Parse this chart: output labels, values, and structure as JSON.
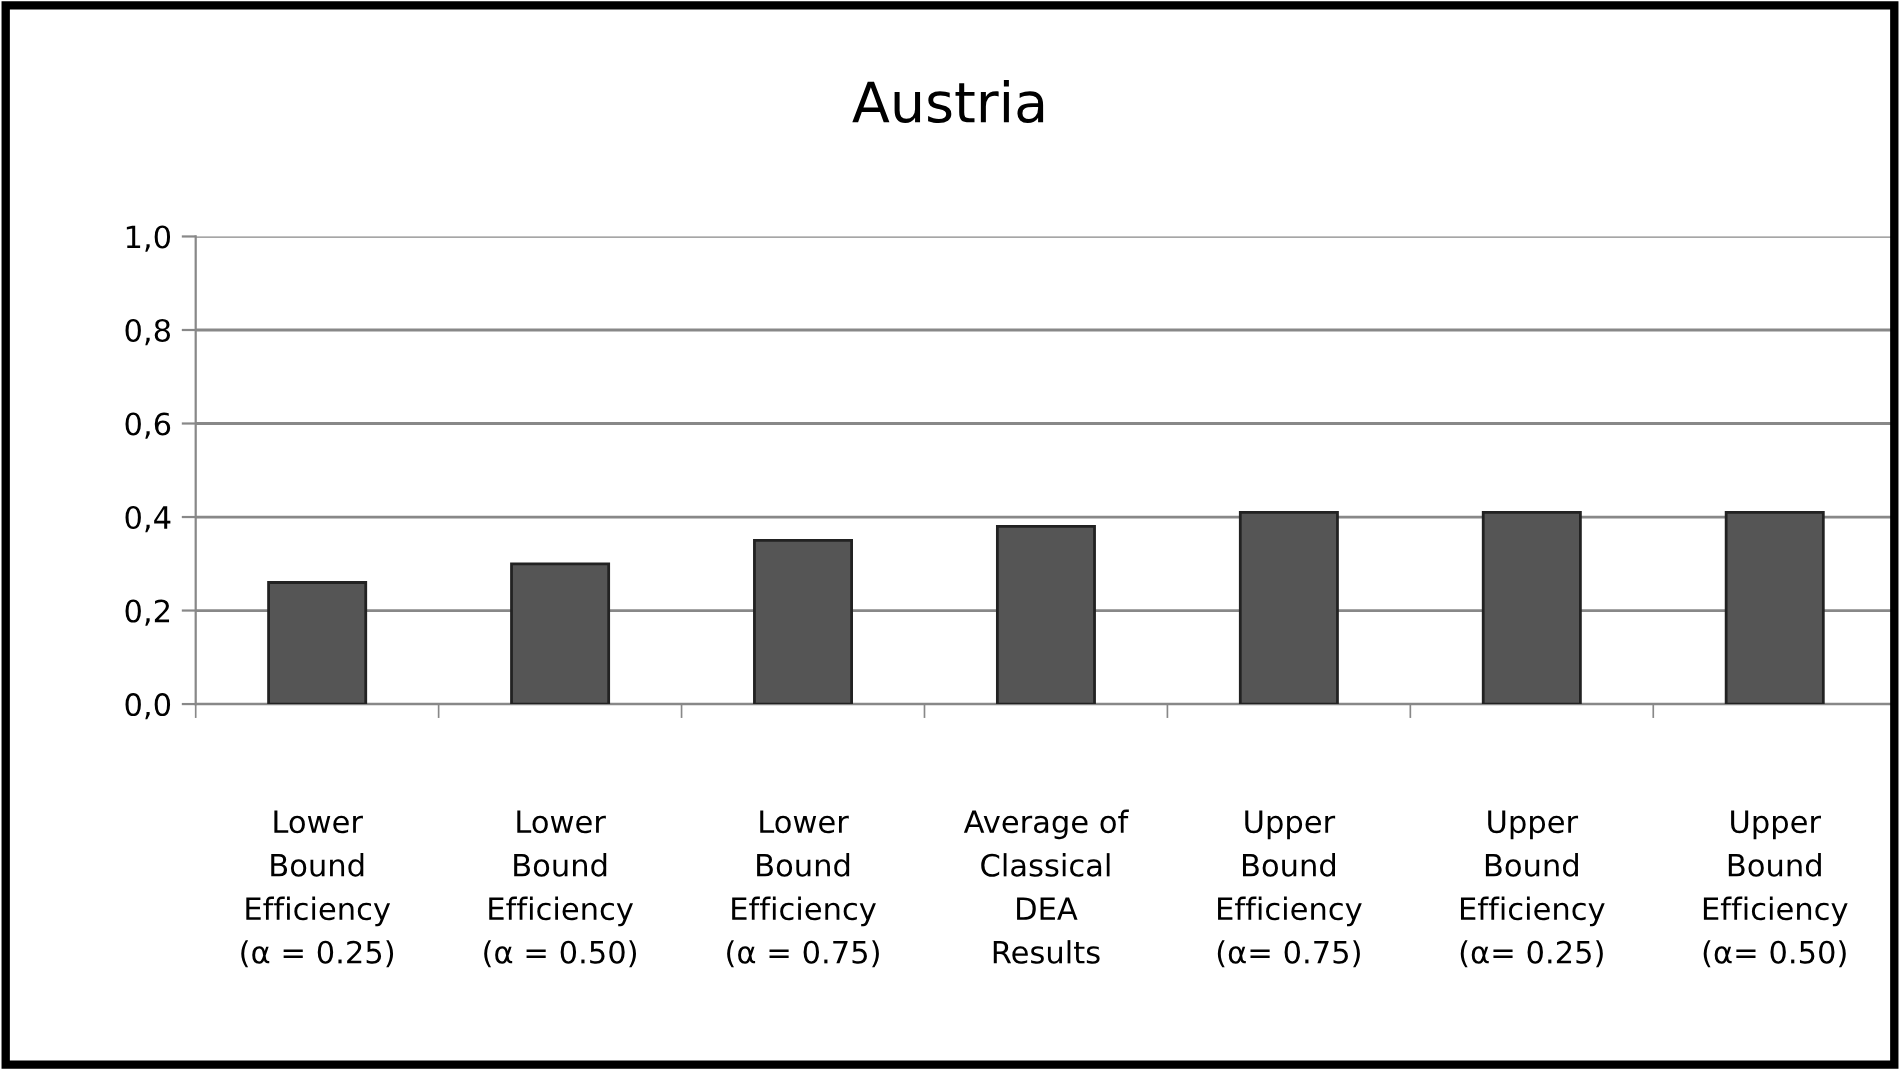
{
  "chart_data": {
    "type": "bar",
    "title": "Austria",
    "categories": [
      "Lower\nBound\nEfficiency\n(α = 0.25)",
      "Lower\nBound\nEfficiency\n(α = 0.50)",
      "Lower\nBound\nEfficiency\n(α = 0.75)",
      "Average of\nClassical\nDEA\nResults",
      "Upper\nBound\nEfficiency\n(α= 0.75)",
      "Upper\nBound\nEfficiency\n(α= 0.25)",
      "Upper\nBound\nEfficiency\n(α= 0.50)"
    ],
    "values": [
      0.26,
      0.3,
      0.35,
      0.38,
      0.41,
      0.41,
      0.41
    ],
    "color": "#555555",
    "ylim": [
      0,
      1.0
    ],
    "yticks": [
      {
        "value": 0,
        "label": "0,0"
      },
      {
        "value": 0.2,
        "label": "0,2"
      },
      {
        "value": 0.4,
        "label": "0,4"
      },
      {
        "value": 0.6,
        "label": "0,6"
      },
      {
        "value": 0.8,
        "label": "0,8"
      },
      {
        "value": 1.0,
        "label": "1,0"
      }
    ],
    "grid": "y"
  }
}
